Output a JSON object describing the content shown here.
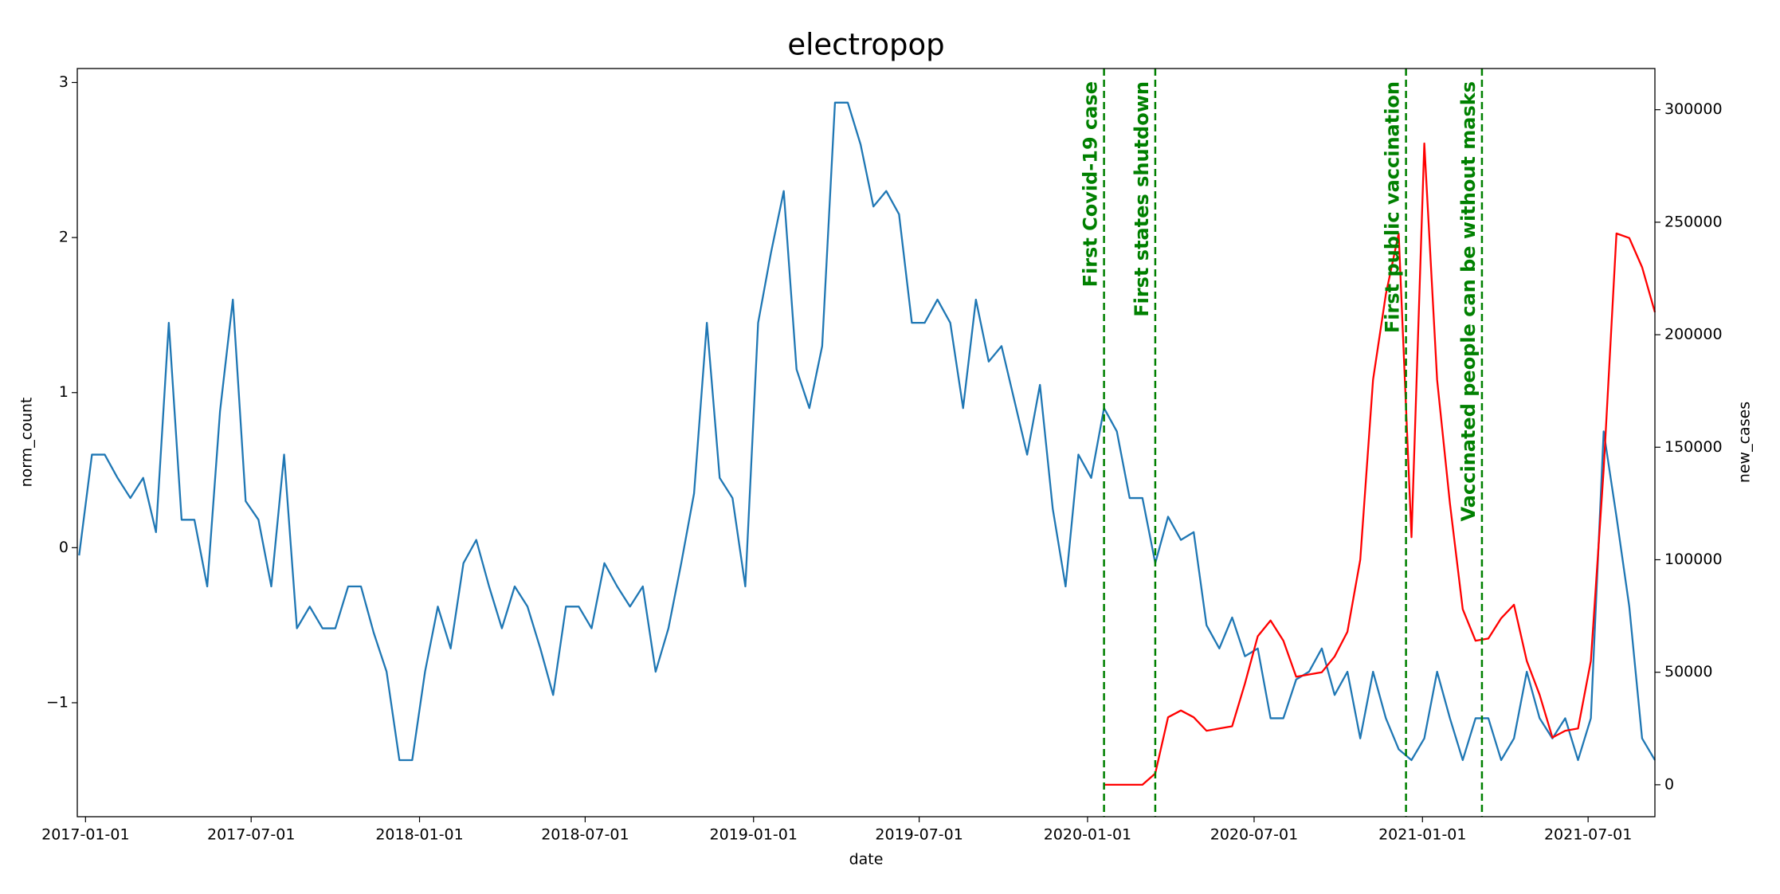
{
  "chart_data": {
    "type": "line",
    "title": "electropop",
    "x_label": "date",
    "y_label": "norm_count",
    "y2_label": "new_cases",
    "xlim": [
      "2016-12-23",
      "2021-09-12"
    ],
    "xticks": [
      "2017-01-01",
      "2017-07-01",
      "2018-01-01",
      "2018-07-01",
      "2019-01-01",
      "2019-07-01",
      "2020-01-01",
      "2020-07-01",
      "2021-01-01",
      "2021-07-01"
    ],
    "ylim": [
      -1.735,
      3.09
    ],
    "yticks": [
      {
        "value": -1,
        "label": "−1"
      },
      0,
      1,
      2,
      3
    ],
    "y2lim": [
      -14200,
      318300
    ],
    "y2ticks": [
      0,
      50000,
      100000,
      150000,
      200000,
      250000,
      300000
    ],
    "grid": false,
    "x": [
      "2016-12-25",
      "2017-01-08",
      "2017-01-22",
      "2017-02-05",
      "2017-02-19",
      "2017-03-05",
      "2017-03-19",
      "2017-04-02",
      "2017-04-16",
      "2017-04-30",
      "2017-05-14",
      "2017-05-28",
      "2017-06-11",
      "2017-06-25",
      "2017-07-09",
      "2017-07-23",
      "2017-08-06",
      "2017-08-20",
      "2017-09-03",
      "2017-09-17",
      "2017-10-01",
      "2017-10-15",
      "2017-10-29",
      "2017-11-12",
      "2017-11-26",
      "2017-12-10",
      "2017-12-24",
      "2018-01-07",
      "2018-01-21",
      "2018-02-04",
      "2018-02-18",
      "2018-03-04",
      "2018-03-18",
      "2018-04-01",
      "2018-04-15",
      "2018-04-29",
      "2018-05-13",
      "2018-05-27",
      "2018-06-10",
      "2018-06-24",
      "2018-07-08",
      "2018-07-22",
      "2018-08-05",
      "2018-08-19",
      "2018-09-02",
      "2018-09-16",
      "2018-09-30",
      "2018-10-14",
      "2018-10-28",
      "2018-11-11",
      "2018-11-25",
      "2018-12-09",
      "2018-12-23",
      "2019-01-06",
      "2019-01-20",
      "2019-02-03",
      "2019-02-17",
      "2019-03-03",
      "2019-03-17",
      "2019-03-31",
      "2019-04-14",
      "2019-04-28",
      "2019-05-12",
      "2019-05-26",
      "2019-06-09",
      "2019-06-23",
      "2019-07-07",
      "2019-07-21",
      "2019-08-04",
      "2019-08-18",
      "2019-09-01",
      "2019-09-15",
      "2019-09-29",
      "2019-10-13",
      "2019-10-27",
      "2019-11-10",
      "2019-11-24",
      "2019-12-08",
      "2019-12-22",
      "2020-01-05",
      "2020-01-19",
      "2020-02-02",
      "2020-02-16",
      "2020-03-01",
      "2020-03-15",
      "2020-03-29",
      "2020-04-12",
      "2020-04-26",
      "2020-05-10",
      "2020-05-24",
      "2020-06-07",
      "2020-06-21",
      "2020-07-05",
      "2020-07-19",
      "2020-08-02",
      "2020-08-16",
      "2020-08-30",
      "2020-09-13",
      "2020-09-27",
      "2020-10-11",
      "2020-10-25",
      "2020-11-08",
      "2020-11-22",
      "2020-12-06",
      "2020-12-20",
      "2021-01-03",
      "2021-01-17",
      "2021-01-31",
      "2021-02-14",
      "2021-02-28",
      "2021-03-14",
      "2021-03-28",
      "2021-04-11",
      "2021-04-25",
      "2021-05-09",
      "2021-05-23",
      "2021-06-06",
      "2021-06-20",
      "2021-07-04",
      "2021-07-18",
      "2021-08-01",
      "2021-08-15",
      "2021-08-29",
      "2021-09-12"
    ],
    "series": [
      {
        "color": "#1f77b4",
        "axis": "y",
        "values": [
          -0.05,
          0.6,
          0.6,
          0.45,
          0.32,
          0.45,
          0.1,
          1.45,
          0.18,
          0.18,
          -0.25,
          0.88,
          1.6,
          0.3,
          0.18,
          -0.25,
          0.6,
          -0.52,
          -0.38,
          -0.52,
          -0.52,
          -0.25,
          -0.25,
          -0.55,
          -0.8,
          -1.37,
          -1.37,
          -0.8,
          -0.38,
          -0.65,
          -0.1,
          0.05,
          -0.25,
          -0.52,
          -0.25,
          -0.38,
          -0.65,
          -0.95,
          -0.38,
          -0.38,
          -0.52,
          -0.1,
          -0.25,
          -0.38,
          -0.25,
          -0.8,
          -0.52,
          -0.1,
          0.35,
          1.45,
          0.45,
          0.32,
          -0.25,
          1.45,
          1.9,
          2.3,
          1.15,
          0.9,
          1.3,
          2.87,
          2.87,
          2.6,
          2.2,
          2.3,
          2.15,
          1.45,
          1.45,
          1.6,
          1.45,
          0.9,
          1.6,
          1.2,
          1.3,
          0.95,
          0.6,
          1.05,
          0.25,
          -0.25,
          0.6,
          0.45,
          0.9,
          0.75,
          0.32,
          0.32,
          -0.1,
          0.2,
          0.05,
          0.1,
          -0.5,
          -0.65,
          -0.45,
          -0.7,
          -0.65,
          -1.1,
          -1.1,
          -0.85,
          -0.8,
          -0.65,
          -0.95,
          -0.8,
          -1.23,
          -0.8,
          -1.1,
          -1.3,
          -1.37,
          -1.23,
          -0.8,
          -1.1,
          -1.37,
          -1.1,
          -1.1,
          -1.37,
          -1.23,
          -0.8,
          -1.1,
          -1.23,
          -1.1,
          -1.37,
          -1.1,
          0.75,
          0.2,
          -0.38,
          -1.23,
          -1.37
        ]
      },
      {
        "color": "red",
        "axis": "y2",
        "values": [
          null,
          null,
          null,
          null,
          null,
          null,
          null,
          null,
          null,
          null,
          null,
          null,
          null,
          null,
          null,
          null,
          null,
          null,
          null,
          null,
          null,
          null,
          null,
          null,
          null,
          null,
          null,
          null,
          null,
          null,
          null,
          null,
          null,
          null,
          null,
          null,
          null,
          null,
          null,
          null,
          null,
          null,
          null,
          null,
          null,
          null,
          null,
          null,
          null,
          null,
          null,
          null,
          null,
          null,
          null,
          null,
          null,
          null,
          null,
          null,
          null,
          null,
          null,
          null,
          null,
          null,
          null,
          null,
          null,
          null,
          null,
          null,
          null,
          null,
          null,
          null,
          null,
          null,
          null,
          null,
          0,
          0,
          0,
          0,
          5000,
          30000,
          33000,
          30000,
          24000,
          25000,
          26000,
          45000,
          66000,
          73000,
          64000,
          48000,
          49000,
          50000,
          57000,
          68000,
          100000,
          180000,
          218000,
          245000,
          110000,
          285000,
          180000,
          125000,
          78000,
          64000,
          65000,
          74000,
          80000,
          55000,
          40000,
          21000,
          24000,
          25000,
          55000,
          140000,
          245000,
          243000,
          230000,
          210000
        ]
      }
    ],
    "annotations": [
      {
        "x": "2020-01-19",
        "label": "First Covid-19 case"
      },
      {
        "x": "2020-03-15",
        "label": "First states shutdown"
      },
      {
        "x": "2020-12-14",
        "label": "First public vaccination"
      },
      {
        "x": "2021-03-07",
        "label": "Vaccinated people can be without masks"
      }
    ],
    "annotation_color": "green"
  }
}
